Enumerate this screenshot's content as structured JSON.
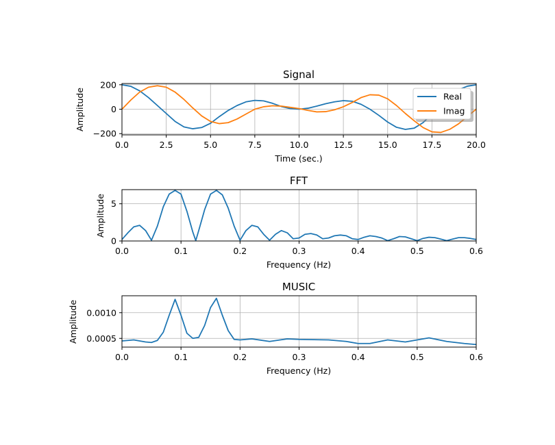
{
  "colors": {
    "real": "#1f77b4",
    "imag": "#ff7f0e",
    "fft": "#1f77b4",
    "music": "#1f77b4",
    "grid": "#b0b0b0"
  },
  "chart_data": [
    {
      "type": "line",
      "title": "Signal",
      "xlabel": "Time (sec.)",
      "ylabel": "Amplitude",
      "xlim": [
        0,
        20
      ],
      "ylim": [
        -210,
        210
      ],
      "xticks": [
        0,
        2.5,
        5,
        7.5,
        10,
        12.5,
        15,
        17.5,
        20
      ],
      "xtick_labels": [
        "0.0",
        "2.5",
        "5.0",
        "7.5",
        "10.0",
        "12.5",
        "15.0",
        "17.5",
        "20.0"
      ],
      "yticks": [
        200,
        0,
        -200
      ],
      "ytick_labels": [
        "200",
        "0",
        "−200"
      ],
      "grid": true,
      "legend": {
        "placement": "top-right",
        "entries": [
          "Real",
          "Imag"
        ]
      },
      "series": [
        {
          "name": "Real",
          "x": [
            0,
            0.5,
            1,
            1.5,
            2,
            2.5,
            3,
            3.5,
            4,
            4.5,
            5,
            5.5,
            6,
            6.5,
            7,
            7.5,
            8,
            8.5,
            9,
            9.5,
            10,
            10.5,
            11,
            11.5,
            12,
            12.5,
            13,
            13.5,
            14,
            14.5,
            15,
            15.5,
            16,
            16.5,
            17,
            17.5,
            18,
            18.5,
            19,
            19.5,
            20
          ],
          "values": [
            200,
            187,
            150,
            95,
            30,
            -35,
            -100,
            -145,
            -160,
            -150,
            -115,
            -60,
            -10,
            30,
            60,
            72,
            68,
            48,
            22,
            5,
            0,
            8,
            25,
            45,
            60,
            70,
            65,
            40,
            0,
            -50,
            -105,
            -148,
            -165,
            -155,
            -110,
            -40,
            40,
            110,
            160,
            188,
            200
          ]
        },
        {
          "name": "Imag",
          "x": [
            0,
            0.5,
            1,
            1.5,
            2,
            2.5,
            3,
            3.5,
            4,
            4.5,
            5,
            5.5,
            6,
            6.5,
            7,
            7.5,
            8,
            8.5,
            9,
            9.5,
            10,
            10.5,
            11,
            11.5,
            12,
            12.5,
            13,
            13.5,
            14,
            14.5,
            15,
            15.5,
            16,
            16.5,
            17,
            17.5,
            18,
            18.5,
            19,
            19.5,
            20
          ],
          "values": [
            0,
            75,
            140,
            180,
            192,
            180,
            140,
            80,
            10,
            -55,
            -100,
            -118,
            -110,
            -80,
            -40,
            0,
            20,
            28,
            25,
            15,
            5,
            -10,
            -22,
            -20,
            -5,
            20,
            55,
            95,
            118,
            115,
            85,
            30,
            -35,
            -95,
            -150,
            -185,
            -190,
            -165,
            -120,
            -60,
            0
          ]
        }
      ]
    },
    {
      "type": "line",
      "title": "FFT",
      "xlabel": "Frequency (Hz)",
      "ylabel": "Amplitude",
      "xlim": [
        0,
        0.6
      ],
      "ylim": [
        0,
        6.9
      ],
      "xticks": [
        0,
        0.1,
        0.2,
        0.3,
        0.4,
        0.5,
        0.6
      ],
      "xtick_labels": [
        "0.0",
        "0.1",
        "0.2",
        "0.3",
        "0.4",
        "0.5",
        "0.6"
      ],
      "yticks": [
        0,
        5
      ],
      "ytick_labels": [
        "0",
        "5"
      ],
      "grid": true,
      "series": [
        {
          "name": "",
          "x": [
            0,
            0.01,
            0.02,
            0.03,
            0.04,
            0.05,
            0.06,
            0.07,
            0.08,
            0.09,
            0.1,
            0.11,
            0.12,
            0.125,
            0.13,
            0.14,
            0.15,
            0.16,
            0.17,
            0.18,
            0.19,
            0.2,
            0.21,
            0.22,
            0.23,
            0.24,
            0.25,
            0.26,
            0.27,
            0.28,
            0.29,
            0.3,
            0.31,
            0.32,
            0.33,
            0.34,
            0.35,
            0.36,
            0.37,
            0.38,
            0.39,
            0.4,
            0.41,
            0.42,
            0.43,
            0.44,
            0.45,
            0.46,
            0.47,
            0.48,
            0.49,
            0.5,
            0.51,
            0.52,
            0.53,
            0.54,
            0.55,
            0.56,
            0.57,
            0.58,
            0.59,
            0.6
          ],
          "values": [
            0.2,
            1.1,
            1.9,
            2.1,
            1.4,
            0.1,
            2.0,
            4.6,
            6.3,
            6.8,
            6.3,
            4.0,
            1.2,
            0.05,
            1.4,
            4.2,
            6.3,
            6.8,
            6.2,
            4.4,
            2.0,
            0.1,
            1.4,
            2.1,
            1.9,
            0.9,
            0.1,
            0.9,
            1.4,
            1.1,
            0.3,
            0.4,
            0.9,
            1.0,
            0.8,
            0.3,
            0.4,
            0.7,
            0.8,
            0.7,
            0.3,
            0.2,
            0.5,
            0.7,
            0.6,
            0.4,
            0.05,
            0.3,
            0.6,
            0.55,
            0.3,
            0.05,
            0.35,
            0.5,
            0.45,
            0.25,
            0.05,
            0.25,
            0.45,
            0.45,
            0.35,
            0.2
          ]
        }
      ]
    },
    {
      "type": "line",
      "title": "MUSIC",
      "xlabel": "Frequency (Hz)",
      "ylabel": "Amplitude",
      "xlim": [
        0,
        0.6
      ],
      "ylim": [
        0.00033,
        0.00133
      ],
      "xticks": [
        0,
        0.1,
        0.2,
        0.3,
        0.4,
        0.5,
        0.6
      ],
      "xtick_labels": [
        "0.0",
        "0.1",
        "0.2",
        "0.3",
        "0.4",
        "0.5",
        "0.6"
      ],
      "yticks": [
        0.001,
        0.0005
      ],
      "ytick_labels": [
        "0.0010",
        "0.0005"
      ],
      "grid": true,
      "series": [
        {
          "name": "",
          "x": [
            0,
            0.02,
            0.04,
            0.05,
            0.06,
            0.07,
            0.08,
            0.09,
            0.1,
            0.11,
            0.12,
            0.13,
            0.14,
            0.15,
            0.16,
            0.17,
            0.18,
            0.19,
            0.2,
            0.22,
            0.25,
            0.28,
            0.3,
            0.35,
            0.38,
            0.4,
            0.42,
            0.45,
            0.48,
            0.5,
            0.52,
            0.55,
            0.58,
            0.6
          ],
          "values": [
            0.00045,
            0.00047,
            0.00043,
            0.00042,
            0.00046,
            0.00062,
            0.00095,
            0.00126,
            0.00095,
            0.0006,
            0.0005,
            0.00052,
            0.00075,
            0.0011,
            0.00128,
            0.00095,
            0.00065,
            0.00048,
            0.00047,
            0.00049,
            0.00044,
            0.00049,
            0.00048,
            0.00047,
            0.00044,
            0.0004,
            0.0004,
            0.00047,
            0.00043,
            0.00047,
            0.00051,
            0.00044,
            0.0004,
            0.00038
          ]
        }
      ]
    }
  ]
}
